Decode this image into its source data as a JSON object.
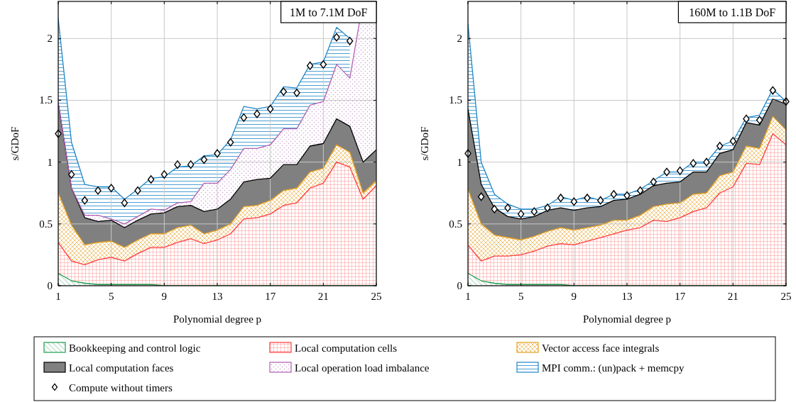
{
  "chart_data": [
    {
      "type": "area",
      "stacked": true,
      "x": [
        1,
        2,
        3,
        4,
        5,
        6,
        7,
        8,
        9,
        10,
        11,
        12,
        13,
        14,
        15,
        16,
        17,
        18,
        19,
        20,
        21,
        22,
        23,
        24,
        25
      ],
      "xlabel": "Polynomial degree p",
      "ylabel": "s/GDoF",
      "xlim": [
        1,
        25
      ],
      "ylim": [
        0,
        2.3
      ],
      "xticks": [
        1,
        5,
        9,
        13,
        17,
        21,
        25
      ],
      "yticks": [
        0,
        0.5,
        1,
        1.5,
        2
      ],
      "grid": true,
      "legend": "bottom",
      "annotations": [
        "1M to 7.1M DoF"
      ],
      "series": [
        {
          "name": "Bookkeeping and control logic",
          "color": "#1f9e50",
          "values": [
            0.1,
            0.04,
            0.02,
            0.01,
            0.01,
            0.01,
            0.01,
            0.01,
            0,
            0,
            0,
            0,
            0,
            0,
            0,
            0,
            0,
            0,
            0,
            0,
            0,
            0,
            0,
            0,
            0
          ]
        },
        {
          "name": "Local computation cells",
          "color": "#ff3b3b",
          "values": [
            0.25,
            0.16,
            0.15,
            0.2,
            0.22,
            0.19,
            0.25,
            0.3,
            0.31,
            0.35,
            0.38,
            0.34,
            0.37,
            0.42,
            0.54,
            0.55,
            0.58,
            0.65,
            0.67,
            0.79,
            0.83,
            1.0,
            0.96,
            0.7,
            0.81
          ]
        },
        {
          "name": "Vector access face integrals",
          "color": "#e6a020",
          "values": [
            0.4,
            0.29,
            0.16,
            0.14,
            0.13,
            0.11,
            0.11,
            0.11,
            0.11,
            0.12,
            0.11,
            0.08,
            0.08,
            0.08,
            0.1,
            0.1,
            0.11,
            0.12,
            0.12,
            0.13,
            0.12,
            0.14,
            0.12,
            0.05,
            0.04
          ]
        },
        {
          "name": "Local computation faces",
          "color": "#808080",
          "values": [
            0.73,
            0.3,
            0.22,
            0.17,
            0.17,
            0.16,
            0.16,
            0.16,
            0.17,
            0.17,
            0.16,
            0.18,
            0.17,
            0.2,
            0.2,
            0.21,
            0.18,
            0.21,
            0.19,
            0.21,
            0.2,
            0.21,
            0.21,
            0.25,
            0.25
          ]
        },
        {
          "name": "Local operation load imbalance",
          "color": "#b05fb0",
          "values": [
            0,
            0,
            0.02,
            0.05,
            0.01,
            0.03,
            0.03,
            0.04,
            0.02,
            0.03,
            0.03,
            0.23,
            0.21,
            0.24,
            0.27,
            0.25,
            0.27,
            0.29,
            0.29,
            0.33,
            0.34,
            0.44,
            0.39,
            1.3,
            1.2
          ]
        },
        {
          "name": "MPI comm.: (un)pack + memcpy",
          "color": "#1f86c8",
          "values": [
            0.68,
            0.37,
            0.25,
            0.23,
            0.26,
            0.2,
            0.22,
            0.25,
            0.27,
            0.29,
            0.29,
            0.22,
            0.23,
            0.24,
            0.34,
            0.32,
            0.31,
            0.34,
            0.33,
            0.33,
            0.32,
            0.3,
            0.32,
            null,
            null
          ]
        },
        {
          "name": "Compute without timers",
          "type": "scatter",
          "marker": "diamond",
          "color": "#000000",
          "values": [
            1.23,
            0.9,
            0.69,
            0.77,
            0.79,
            0.67,
            0.77,
            0.86,
            0.9,
            0.98,
            0.98,
            1.02,
            1.07,
            1.16,
            1.36,
            1.39,
            1.43,
            1.57,
            1.56,
            1.78,
            1.79,
            2.01,
            1.98,
            null,
            null
          ]
        }
      ]
    },
    {
      "type": "area",
      "stacked": true,
      "x": [
        1,
        2,
        3,
        4,
        5,
        6,
        7,
        8,
        9,
        10,
        11,
        12,
        13,
        14,
        15,
        16,
        17,
        18,
        19,
        20,
        21,
        22,
        23,
        24,
        25
      ],
      "xlabel": "Polynomial degree p",
      "ylabel": "s/GDoF",
      "xlim": [
        1,
        25
      ],
      "ylim": [
        0,
        2.3
      ],
      "xticks": [
        1,
        5,
        9,
        13,
        17,
        21,
        25
      ],
      "yticks": [
        0,
        0.5,
        1,
        1.5,
        2
      ],
      "grid": true,
      "annotations": [
        "160M to 1.1B DoF"
      ],
      "series": [
        {
          "color": "#1f9e50",
          "values": [
            0.1,
            0.04,
            0.02,
            0.01,
            0.01,
            0.01,
            0.01,
            0.01,
            0,
            0,
            0,
            0,
            0,
            0,
            0,
            0,
            0,
            0,
            0,
            0,
            0,
            0,
            0,
            0,
            0
          ]
        },
        {
          "color": "#ff3b3b",
          "values": [
            0.23,
            0.16,
            0.22,
            0.23,
            0.24,
            0.27,
            0.31,
            0.33,
            0.33,
            0.36,
            0.39,
            0.42,
            0.45,
            0.47,
            0.53,
            0.52,
            0.55,
            0.6,
            0.63,
            0.75,
            0.8,
            0.99,
            0.98,
            1.23,
            1.14
          ]
        },
        {
          "color": "#e6a020",
          "values": [
            0.45,
            0.3,
            0.17,
            0.15,
            0.12,
            0.12,
            0.12,
            0.13,
            0.12,
            0.11,
            0.1,
            0.11,
            0.08,
            0.1,
            0.11,
            0.14,
            0.12,
            0.14,
            0.12,
            0.14,
            0.12,
            0.14,
            0.13,
            0.14,
            0.12
          ]
        },
        {
          "color": "#808080",
          "values": [
            0.65,
            0.32,
            0.22,
            0.17,
            0.17,
            0.16,
            0.17,
            0.16,
            0.16,
            0.16,
            0.15,
            0.16,
            0.17,
            0.17,
            0.17,
            0.17,
            0.17,
            0.18,
            0.17,
            0.18,
            0.18,
            0.19,
            0.19,
            0.14,
            0.21
          ]
        },
        {
          "color": "#1f86c8",
          "values": [
            0.69,
            0.18,
            0.11,
            0.1,
            0.08,
            0.06,
            0.04,
            0.09,
            0.08,
            0.09,
            0.05,
            0.05,
            0.04,
            0.04,
            0.04,
            0.09,
            0.08,
            0.08,
            0.08,
            0.06,
            0.07,
            0.04,
            0.08,
            0.08,
            0.02
          ]
        },
        {
          "type": "scatter",
          "marker": "diamond",
          "color": "#000000",
          "values": [
            1.07,
            0.72,
            0.62,
            0.63,
            0.58,
            0.6,
            0.63,
            0.71,
            0.68,
            0.71,
            0.69,
            0.74,
            0.73,
            0.77,
            0.84,
            0.92,
            0.93,
            0.99,
            1.0,
            1.13,
            1.17,
            1.35,
            1.34,
            1.58,
            1.49
          ]
        }
      ]
    }
  ]
}
